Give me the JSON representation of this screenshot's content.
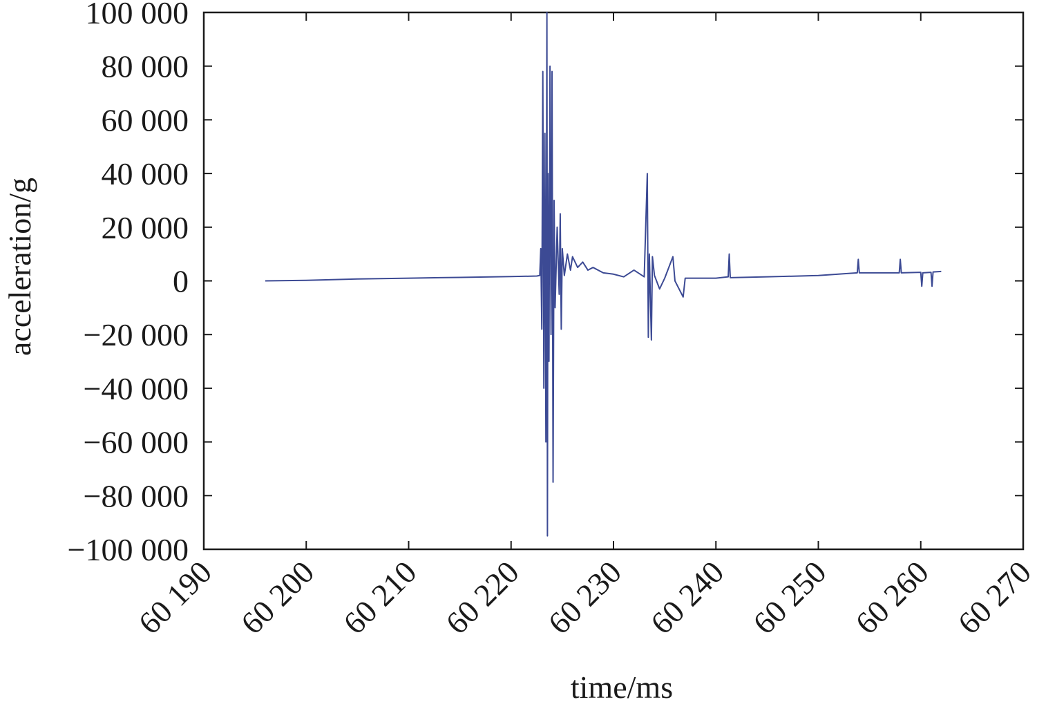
{
  "chart_data": {
    "type": "line",
    "x_label": "time/ms",
    "y_label": "acceleration/g",
    "x": [
      60196,
      60200,
      60205,
      60210,
      60215,
      60220,
      60222.5,
      60222.8,
      60222.9,
      60223.0,
      60223.1,
      60223.2,
      60223.3,
      60223.4,
      60223.5,
      60223.55,
      60223.6,
      60223.7,
      60223.8,
      60223.9,
      60224.0,
      60224.1,
      60224.2,
      60224.3,
      60224.5,
      60224.7,
      60224.8,
      60224.9,
      60225.0,
      60225.2,
      60225.5,
      60225.8,
      60226,
      60226.5,
      60227,
      60227.5,
      60228,
      60229,
      60230,
      60231,
      60232,
      60233,
      60233.3,
      60233.4,
      60233.5,
      60233.7,
      60233.8,
      60234,
      60234.5,
      60235,
      60235.8,
      60236,
      60236.8,
      60237,
      60240,
      60241.2,
      60241.3,
      60241.4,
      60245,
      60250,
      60253.8,
      60253.9,
      60254,
      60257.9,
      60258,
      60258.1,
      60260,
      60260.1,
      60260.2,
      60261,
      60261.1,
      60261.2,
      60262
    ],
    "series": [
      {
        "name": "acceleration",
        "color": "#3c4a94",
        "values": [
          0,
          200,
          700,
          1000,
          1300,
          1600,
          1800,
          2000,
          12000,
          -18000,
          78000,
          -40000,
          55000,
          -60000,
          100000,
          -95000,
          40000,
          -30000,
          80000,
          -20000,
          78000,
          -75000,
          30000,
          -10000,
          20000,
          -5000,
          25000,
          -18000,
          12000,
          2000,
          10000,
          4000,
          9000,
          5000,
          7000,
          4000,
          5000,
          3000,
          2500,
          1500,
          4000,
          1500,
          40000,
          -21000,
          10000,
          -22000,
          9000,
          2000,
          -3000,
          1000,
          9000,
          0,
          -6000,
          1000,
          1000,
          1500,
          10000,
          1200,
          1500,
          2000,
          3000,
          8000,
          3000,
          3000,
          8000,
          3000,
          3200,
          -2000,
          3000,
          3200,
          -2000,
          3300,
          3500
        ]
      }
    ],
    "xlim": [
      60190,
      60270
    ],
    "xticks": [
      {
        "value": 60190,
        "label": "60 190"
      },
      {
        "value": 60200,
        "label": "60 200"
      },
      {
        "value": 60210,
        "label": "60 210"
      },
      {
        "value": 60220,
        "label": "60 220"
      },
      {
        "value": 60230,
        "label": "60 230"
      },
      {
        "value": 60240,
        "label": "60 240"
      },
      {
        "value": 60250,
        "label": "60 250"
      },
      {
        "value": 60260,
        "label": "60 260"
      },
      {
        "value": 60270,
        "label": "60 270"
      }
    ],
    "ylim": [
      -100000,
      100000
    ],
    "yticks": [
      {
        "value": -100000,
        "label": "−100 000"
      },
      {
        "value": -80000,
        "label": "−80 000"
      },
      {
        "value": -60000,
        "label": "−60 000"
      },
      {
        "value": -40000,
        "label": "−40 000"
      },
      {
        "value": -20000,
        "label": "−20 000"
      },
      0,
      {
        "value": 20000,
        "label": "20 000"
      },
      {
        "value": 40000,
        "label": "40 000"
      },
      {
        "value": 60000,
        "label": "60 000"
      },
      {
        "value": 80000,
        "label": "80 000"
      },
      {
        "value": 100000,
        "label": "100 000"
      }
    ]
  }
}
